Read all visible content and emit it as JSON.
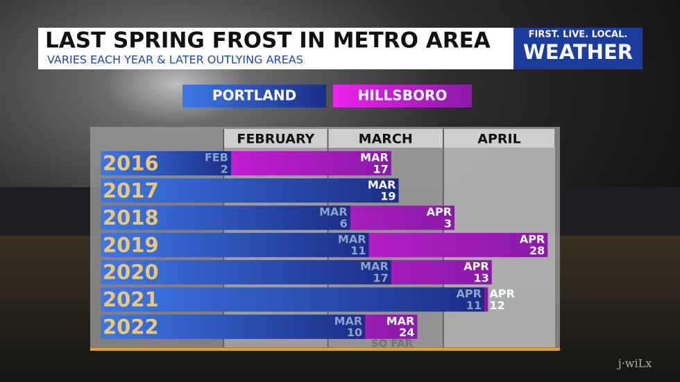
{
  "chart_data": {
    "type": "bar",
    "title": "LAST SPRING FROST IN METRO AREA",
    "subtitle": "VARIES EACH YEAR & LATER OUTLYING AREAS",
    "branding": [
      "FIRST. LIVE. LOCAL.",
      "WEATHER"
    ],
    "credit": "j·wiLx",
    "categories": [
      "2016",
      "2017",
      "2018",
      "2019",
      "2020",
      "2021",
      "2022"
    ],
    "series": [
      {
        "name": "PORTLAND",
        "color": "#2a4fc0",
        "values": [
          33,
          78,
          65,
          70,
          76,
          101,
          69
        ],
        "value_labels": [
          "FEB 2",
          "MAR 19",
          "MAR 6",
          "MAR 11",
          "MAR 17",
          "APR 11",
          "MAR 10"
        ]
      },
      {
        "name": "HILLSBORO",
        "color": "#c21ad0",
        "values": [
          76,
          null,
          93,
          118,
          103,
          102,
          83
        ],
        "value_labels": [
          "MAR 17",
          null,
          "APR 3",
          "APR 28",
          "APR 13",
          "APR 12",
          "MAR 24"
        ]
      }
    ],
    "xlim": [
      -2,
      120
    ],
    "xticks": [
      {
        "value": 31,
        "label": "FEBRUARY"
      },
      {
        "value": 59,
        "label": "MARCH"
      },
      {
        "value": 90,
        "label": "APRIL"
      }
    ],
    "annotation": "SO FAR"
  }
}
